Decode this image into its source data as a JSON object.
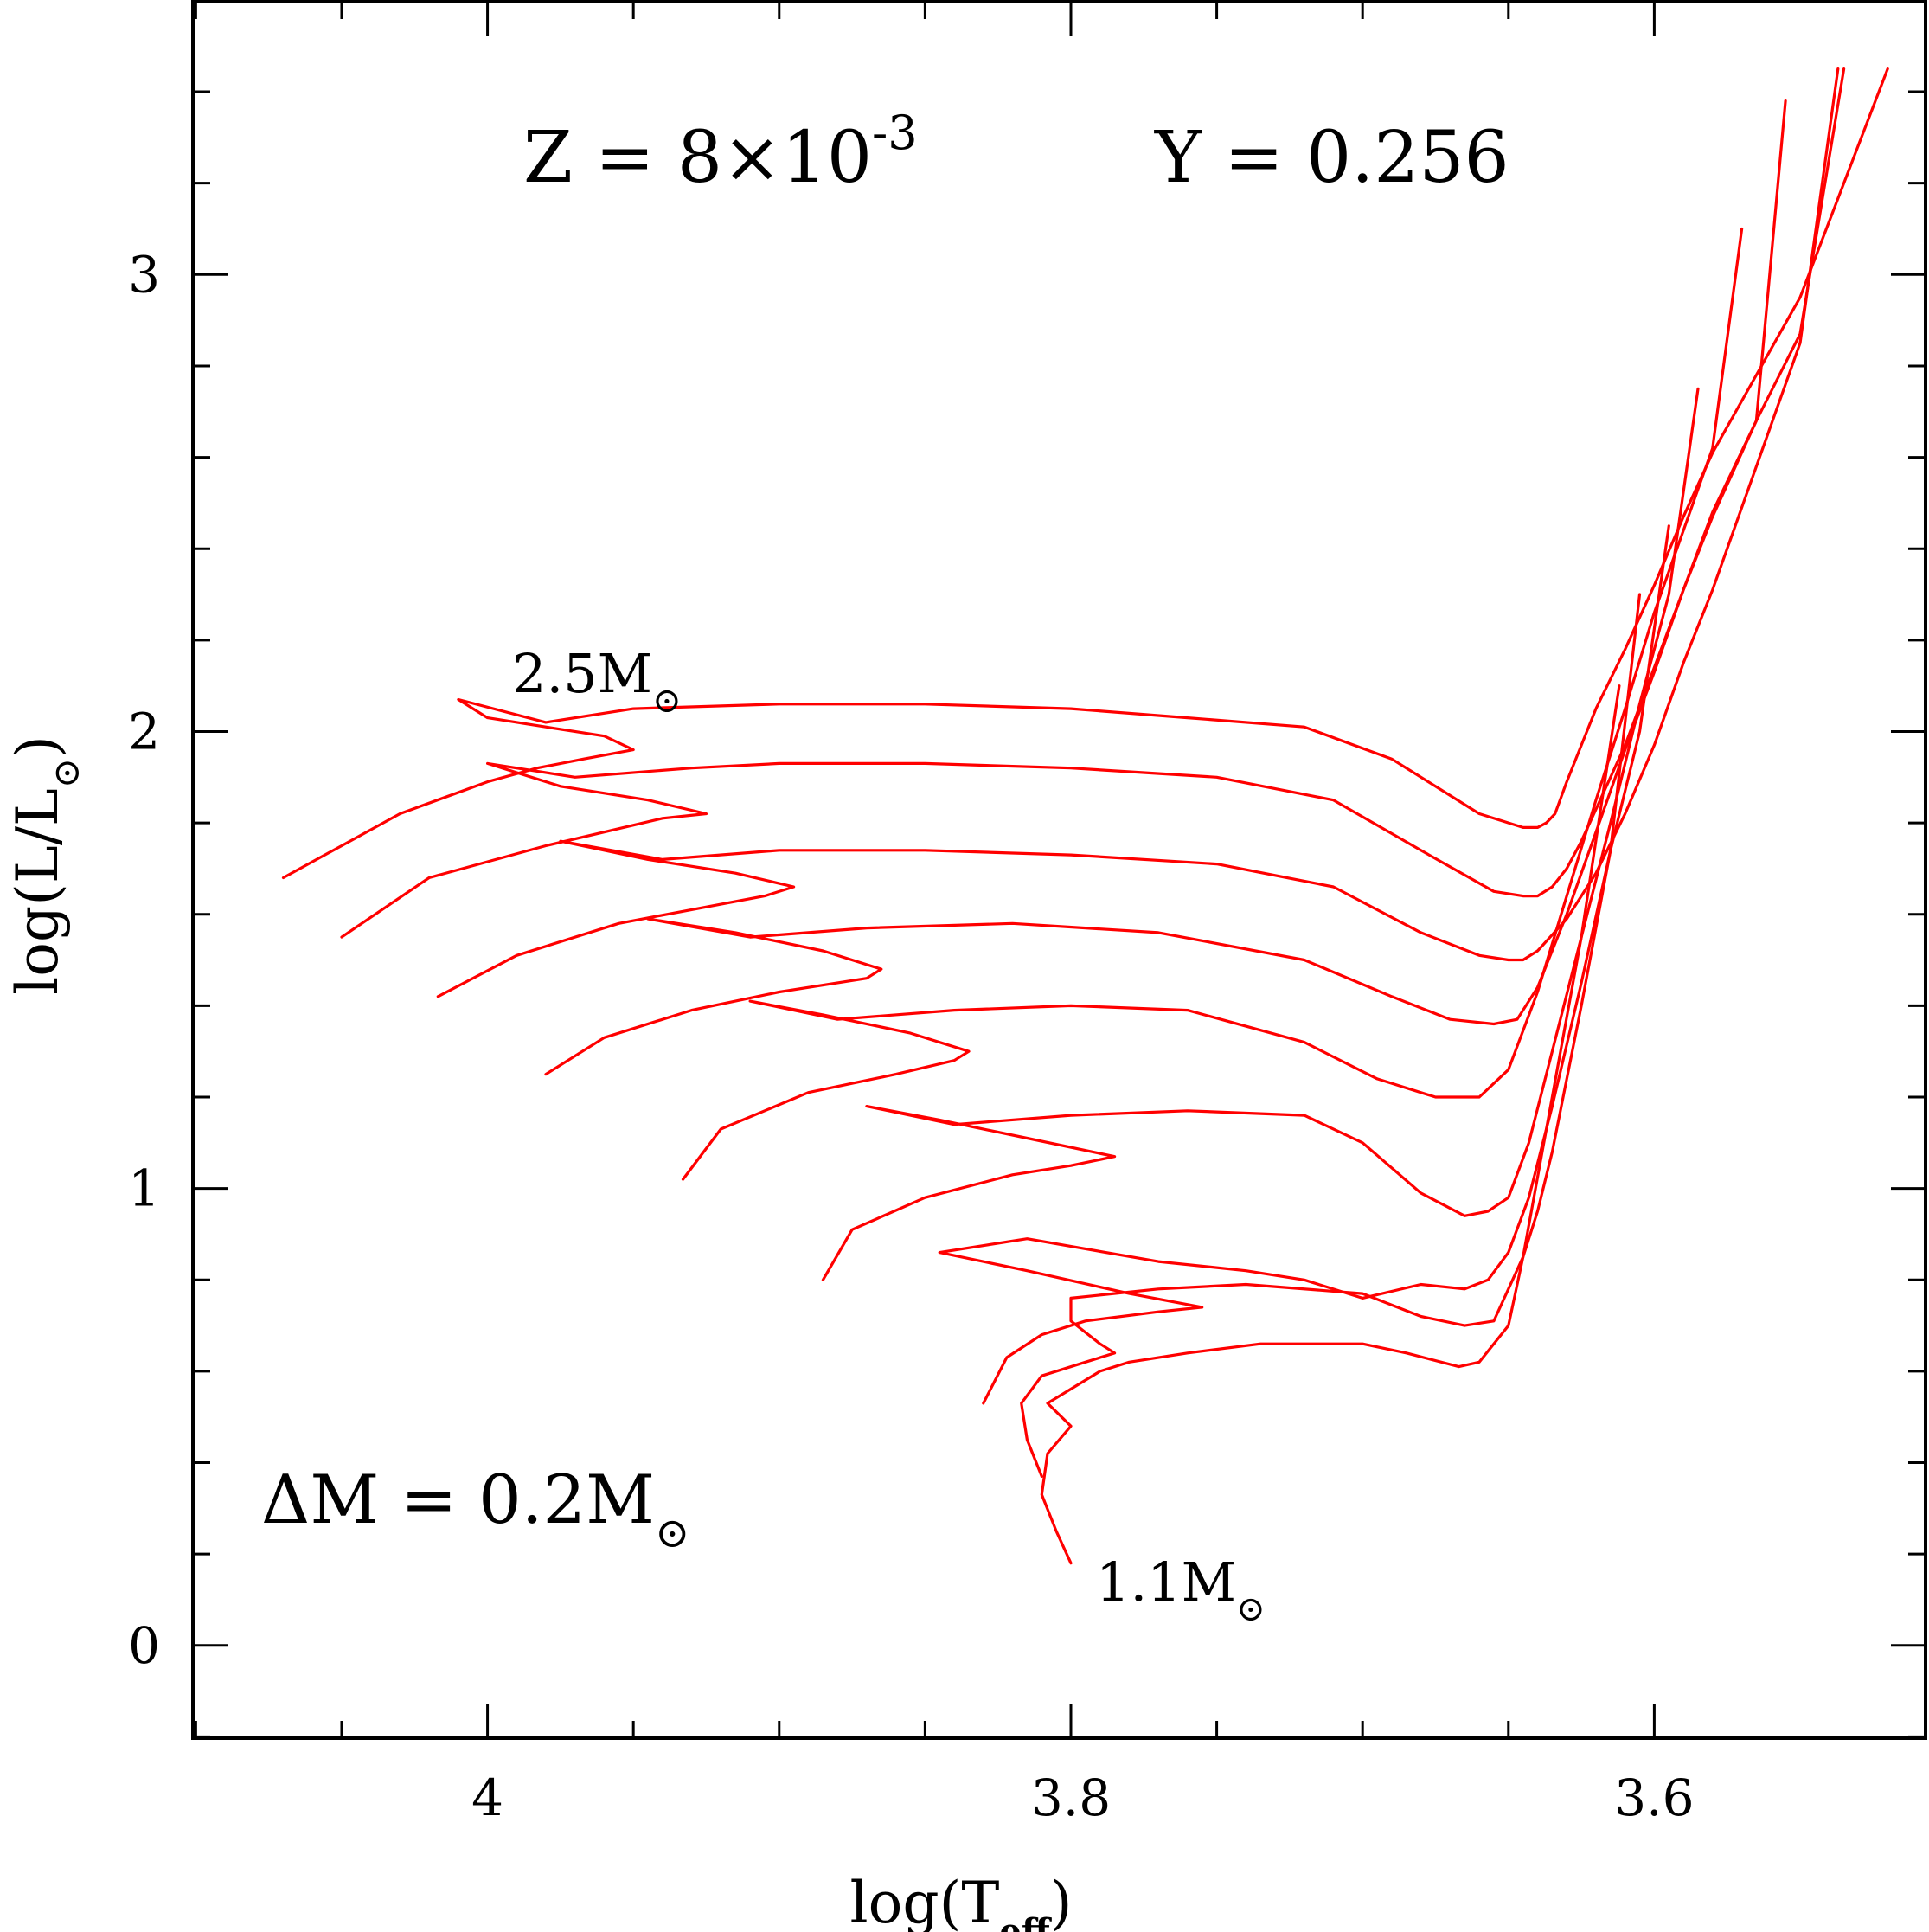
{
  "chart_data": {
    "type": "line",
    "title": "",
    "xlabel": "log(T_eff)",
    "ylabel": "log(L/L_⊙)",
    "x_reversed": true,
    "xlim": [
      4.101,
      3.507
    ],
    "ylim": [
      -0.203,
      3.597
    ],
    "xticks": [
      4,
      3.8,
      3.6
    ],
    "yticks": [
      0,
      1,
      2,
      3
    ],
    "grid": false,
    "color": "#ff0000",
    "annotations": {
      "composition": {
        "z_prefix": "Z = 8×10",
        "z_exp": "-3",
        "y": "Y = 0.256"
      },
      "delta_m": {
        "prefix": "ΔM = 0.2M",
        "sun": "⊙"
      },
      "top_mass": {
        "prefix": "2.5M",
        "sun": "⊙"
      },
      "bottom_mass": {
        "prefix": "1.1M",
        "sun": "⊙"
      }
    },
    "series": [
      {
        "x": [
          4.07,
          4.03,
          4.0,
          3.983,
          3.967,
          3.95,
          3.96,
          3.98,
          4.0,
          4.01,
          3.98,
          3.95,
          3.9,
          3.85,
          3.8,
          3.76,
          3.72,
          3.69,
          3.66,
          3.645,
          3.64,
          3.637,
          3.634,
          3.63,
          3.625,
          3.62,
          3.61,
          3.6,
          3.59,
          3.58,
          3.565,
          3.55,
          3.52
        ],
        "y": [
          1.68,
          1.82,
          1.89,
          1.92,
          1.94,
          1.96,
          1.99,
          2.01,
          2.03,
          2.07,
          2.02,
          2.05,
          2.06,
          2.06,
          2.05,
          2.03,
          2.01,
          1.94,
          1.82,
          1.79,
          1.79,
          1.8,
          1.82,
          1.89,
          1.97,
          2.05,
          2.18,
          2.32,
          2.47,
          2.61,
          2.78,
          2.95,
          3.45
        ]
      },
      {
        "x": [
          4.05,
          4.02,
          3.98,
          3.96,
          3.94,
          3.925,
          3.945,
          3.975,
          4.0,
          3.97,
          3.93,
          3.9,
          3.85,
          3.8,
          3.75,
          3.71,
          3.68,
          3.655,
          3.645,
          3.64,
          3.635,
          3.63,
          3.625,
          3.62,
          3.61,
          3.6,
          3.59,
          3.58,
          3.565,
          3.55,
          3.535
        ],
        "y": [
          1.55,
          1.68,
          1.75,
          1.78,
          1.81,
          1.82,
          1.85,
          1.88,
          1.93,
          1.9,
          1.92,
          1.93,
          1.93,
          1.92,
          1.9,
          1.85,
          1.74,
          1.65,
          1.64,
          1.64,
          1.66,
          1.7,
          1.76,
          1.83,
          1.97,
          2.14,
          2.31,
          2.47,
          2.68,
          2.87,
          3.45
        ]
      },
      {
        "x": [
          4.017,
          3.99,
          3.955,
          3.93,
          3.905,
          3.895,
          3.915,
          3.945,
          3.975,
          3.94,
          3.9,
          3.85,
          3.8,
          3.75,
          3.71,
          3.68,
          3.66,
          3.65,
          3.645,
          3.64,
          3.63,
          3.62,
          3.61,
          3.6,
          3.59,
          3.58,
          3.565,
          3.55,
          3.537
        ],
        "y": [
          1.42,
          1.51,
          1.58,
          1.61,
          1.64,
          1.66,
          1.69,
          1.72,
          1.76,
          1.72,
          1.74,
          1.74,
          1.73,
          1.71,
          1.66,
          1.56,
          1.51,
          1.5,
          1.5,
          1.52,
          1.59,
          1.69,
          1.82,
          1.97,
          2.15,
          2.31,
          2.58,
          2.85,
          3.45
        ]
      },
      {
        "x": [
          3.98,
          3.96,
          3.93,
          3.9,
          3.87,
          3.865,
          3.885,
          3.915,
          3.945,
          3.91,
          3.87,
          3.82,
          3.77,
          3.72,
          3.69,
          3.67,
          3.655,
          3.647,
          3.64,
          3.63,
          3.62,
          3.61,
          3.6,
          3.59,
          3.58,
          3.565,
          3.555
        ],
        "y": [
          1.25,
          1.33,
          1.39,
          1.43,
          1.46,
          1.48,
          1.52,
          1.56,
          1.59,
          1.55,
          1.57,
          1.58,
          1.56,
          1.5,
          1.42,
          1.37,
          1.36,
          1.37,
          1.44,
          1.6,
          1.78,
          1.96,
          2.13,
          2.31,
          2.48,
          2.68,
          3.38
        ]
      },
      {
        "x": [
          3.933,
          3.92,
          3.89,
          3.86,
          3.84,
          3.835,
          3.855,
          3.885,
          3.91,
          3.88,
          3.84,
          3.8,
          3.76,
          3.72,
          3.695,
          3.675,
          3.66,
          3.65,
          3.64,
          3.63,
          3.62,
          3.61,
          3.6,
          3.59,
          3.58,
          3.57
        ],
        "y": [
          1.02,
          1.13,
          1.21,
          1.25,
          1.28,
          1.3,
          1.34,
          1.38,
          1.41,
          1.37,
          1.39,
          1.4,
          1.39,
          1.32,
          1.24,
          1.2,
          1.2,
          1.26,
          1.43,
          1.64,
          1.85,
          2.05,
          2.26,
          2.44,
          2.62,
          3.1
        ]
      },
      {
        "x": [
          3.885,
          3.875,
          3.85,
          3.82,
          3.8,
          3.785,
          3.815,
          3.845,
          3.87,
          3.84,
          3.8,
          3.76,
          3.72,
          3.7,
          3.68,
          3.665,
          3.657,
          3.65,
          3.643,
          3.635,
          3.625,
          3.615,
          3.605,
          3.595,
          3.585
        ],
        "y": [
          0.8,
          0.91,
          0.98,
          1.03,
          1.05,
          1.07,
          1.11,
          1.15,
          1.18,
          1.14,
          1.16,
          1.17,
          1.16,
          1.1,
          0.99,
          0.94,
          0.95,
          0.98,
          1.1,
          1.3,
          1.55,
          1.8,
          2.06,
          2.3,
          2.75
        ]
      },
      {
        "x": [
          3.83,
          3.822,
          3.81,
          3.795,
          3.77,
          3.755,
          3.78,
          3.815,
          3.845,
          3.815,
          3.77,
          3.74,
          3.72,
          3.7,
          3.68,
          3.665,
          3.657,
          3.65,
          3.643,
          3.635,
          3.625,
          3.615,
          3.605,
          3.595
        ],
        "y": [
          0.53,
          0.63,
          0.68,
          0.71,
          0.73,
          0.74,
          0.77,
          0.82,
          0.86,
          0.89,
          0.84,
          0.82,
          0.8,
          0.76,
          0.79,
          0.78,
          0.8,
          0.86,
          0.98,
          1.18,
          1.45,
          1.74,
          2.0,
          2.45
        ]
      },
      {
        "x": [
          3.81,
          3.815,
          3.817,
          3.81,
          3.795,
          3.785,
          3.79,
          3.8,
          3.8,
          3.77,
          3.74,
          3.7,
          3.68,
          3.665,
          3.655,
          3.645,
          3.64,
          3.635,
          3.625,
          3.615,
          3.605
        ],
        "y": [
          0.37,
          0.45,
          0.53,
          0.59,
          0.62,
          0.64,
          0.66,
          0.71,
          0.76,
          0.78,
          0.79,
          0.77,
          0.72,
          0.7,
          0.71,
          0.85,
          0.95,
          1.08,
          1.4,
          1.74,
          2.3
        ]
      },
      {
        "x": [
          3.8,
          3.805,
          3.81,
          3.808,
          3.8,
          3.808,
          3.79,
          3.78,
          3.76,
          3.735,
          3.7,
          3.685,
          3.667,
          3.66,
          3.65,
          3.645,
          3.635,
          3.625,
          3.612
        ],
        "y": [
          0.18,
          0.25,
          0.33,
          0.42,
          0.48,
          0.53,
          0.6,
          0.62,
          0.64,
          0.66,
          0.66,
          0.64,
          0.61,
          0.62,
          0.7,
          0.85,
          1.2,
          1.55,
          2.1
        ]
      }
    ]
  }
}
